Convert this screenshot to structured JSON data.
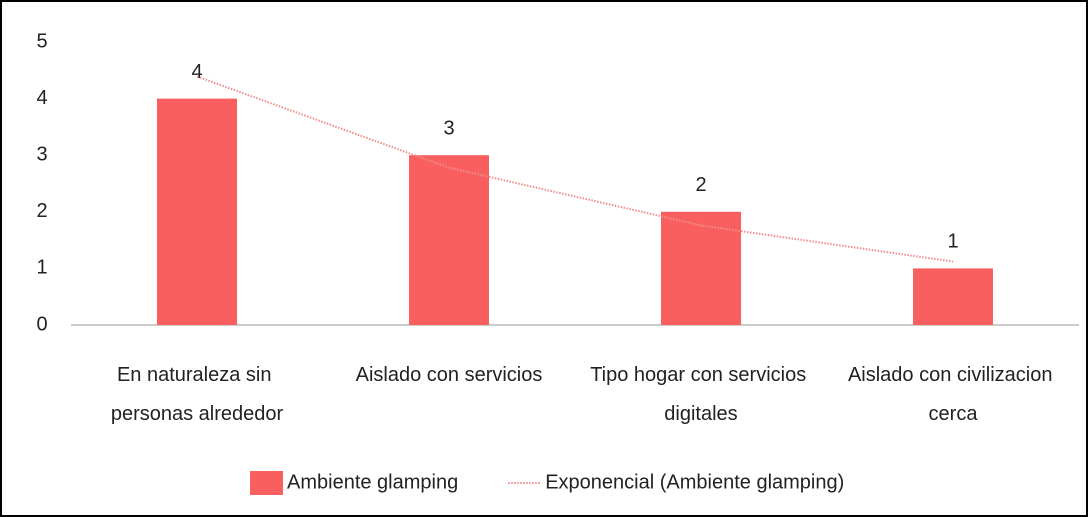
{
  "chart_data": {
    "type": "bar",
    "categories": [
      "En naturaleza sin personas alrededor",
      "Aislado con servicios",
      "Tipo hogar con servicios digitales",
      "Aislado con civilizacion cerca"
    ],
    "series": [
      {
        "name": "Ambiente glamping",
        "color": "#fa5f5f",
        "values": [
          4,
          3,
          2,
          1
        ]
      },
      {
        "name": "Exponencial (Ambiente glamping)",
        "type": "trendline",
        "color": "#f28c8c",
        "values": [
          4.39,
          2.78,
          1.76,
          1.12
        ]
      }
    ],
    "ylim": [
      0,
      5
    ],
    "yticks": [
      0,
      1,
      2,
      3,
      4,
      5
    ],
    "grid": false,
    "legend": "bottom"
  }
}
